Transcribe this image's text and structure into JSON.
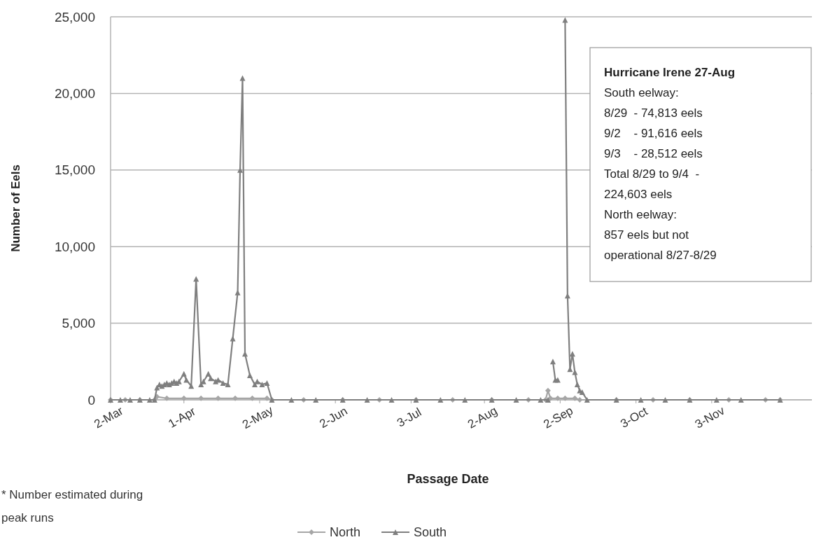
{
  "chart_data": {
    "type": "line",
    "xlabel": "Passage Date",
    "ylabel": "Number of Eels",
    "xlim": [
      "--03-02",
      "--12-14"
    ],
    "ylim": [
      0,
      25000
    ],
    "xticks": [
      {
        "value": "--03-02",
        "label": "2-Mar"
      },
      {
        "value": "--04-01",
        "label": "1-Apr"
      },
      {
        "value": "--05-02",
        "label": "2-May"
      },
      {
        "value": "--06-02",
        "label": "2-Jun"
      },
      {
        "value": "--07-03",
        "label": "3-Jul"
      },
      {
        "value": "--08-02",
        "label": "2-Aug"
      },
      {
        "value": "--09-02",
        "label": "2-Sep"
      },
      {
        "value": "--10-03",
        "label": "3-Oct"
      },
      {
        "value": "--11-03",
        "label": "3-Nov"
      }
    ],
    "yticks": [
      {
        "value": 0,
        "label": "0"
      },
      {
        "value": 5000,
        "label": "5,000"
      },
      {
        "value": 10000,
        "label": "10,000"
      },
      {
        "value": 15000,
        "label": "15,000"
      },
      {
        "value": 20000,
        "label": "20,000"
      },
      {
        "value": 25000,
        "label": "25,000"
      }
    ],
    "grid": "y",
    "legend": "bottom",
    "series": [
      {
        "name": "North",
        "color": "#a6a6a6",
        "marker": "diamond",
        "x": [
          "--03-02",
          "--03-08",
          "--03-14",
          "--03-20",
          "--03-21",
          "--03-25",
          "--04-01",
          "--04-08",
          "--04-15",
          "--04-22",
          "--04-29",
          "--05-05",
          "--05-07",
          "--05-20",
          "--06-05",
          "--06-20",
          "--07-05",
          "--07-20",
          "--08-05",
          "--08-20",
          "--08-27",
          "--08-28",
          "--08-29",
          "--09-01",
          "--09-04",
          "--09-08",
          "--09-10",
          "--09-25",
          "--10-10",
          "--10-25",
          "--11-10",
          "--11-25",
          "--12-01"
        ],
        "values": [
          0,
          0,
          0,
          0,
          200,
          100,
          100,
          100,
          100,
          100,
          100,
          100,
          0,
          0,
          0,
          0,
          0,
          0,
          0,
          0,
          0,
          600,
          100,
          100,
          100,
          100,
          0,
          0,
          0,
          0,
          0,
          0,
          0
        ]
      },
      {
        "name": "South",
        "color": "#7f7f7f",
        "marker": "triangle",
        "x": [
          "--03-02",
          "--03-06",
          "--03-10",
          "--03-14",
          "--03-18",
          "--03-20",
          "--03-21",
          "--03-22",
          "--03-23",
          "--03-24",
          "--03-25",
          "--03-26",
          "--03-27",
          "--03-28",
          "--03-29",
          "--03-30",
          "--04-01",
          "--04-02",
          "--04-04",
          "--04-06",
          "--04-08",
          "--04-09",
          "--04-11",
          "--04-12",
          "--04-14",
          "--04-15",
          "--04-17",
          "--04-19",
          "--04-21",
          "--04-23",
          "--04-24",
          "--04-25",
          "--04-26",
          "--04-28",
          "--04-30",
          "--05-01",
          "--05-03",
          "--05-05",
          "--05-07",
          "--05-15",
          "--05-25",
          "--06-05",
          "--06-15",
          "--06-25",
          "--07-05",
          "--07-15",
          "--07-25",
          "--08-05",
          "--08-15",
          "--08-25",
          "--08-28",
          "--08-29",
          "--08-30",
          "--08-31",
          "--09-01",
          "--09-02",
          "--09-03",
          "--09-04",
          "--09-05",
          "--09-06",
          "--09-07",
          "--09-08",
          "--09-09",
          "--09-10",
          "--09-11",
          "--09-13",
          "--09-25",
          "--10-05",
          "--10-15",
          "--10-25",
          "--11-05",
          "--11-15",
          "--12-01"
        ],
        "values": [
          0,
          0,
          0,
          0,
          0,
          0,
          800,
          1000,
          900,
          1000,
          1100,
          1000,
          1100,
          1200,
          1100,
          1200,
          1700,
          1300,
          900,
          7900,
          1000,
          1200,
          1700,
          1400,
          1200,
          1300,
          1100,
          1000,
          4000,
          7000,
          15000,
          21000,
          3000,
          1600,
          1000,
          1200,
          1000,
          1100,
          0,
          0,
          0,
          0,
          0,
          0,
          0,
          0,
          0,
          0,
          0,
          0,
          0,
          null,
          2500,
          1300,
          1300,
          null,
          null,
          24800,
          6800,
          2000,
          3000,
          1800,
          1000,
          600,
          500,
          0,
          0,
          0,
          0,
          0,
          0,
          0,
          0
        ]
      }
    ],
    "annotations": [
      "Hurricane Irene 27-Aug\nSouth eelway:\n8/29  - 74,813 eels\n9/2    - 91,616 eels\n9/3    - 28,512 eels\nTotal 8/29 to 9/4  -\n224,603 eels\nNorth eelway:\n857 eels but not\noperational 8/27-8/29",
      "* Number estimated during\npeak runs"
    ]
  }
}
